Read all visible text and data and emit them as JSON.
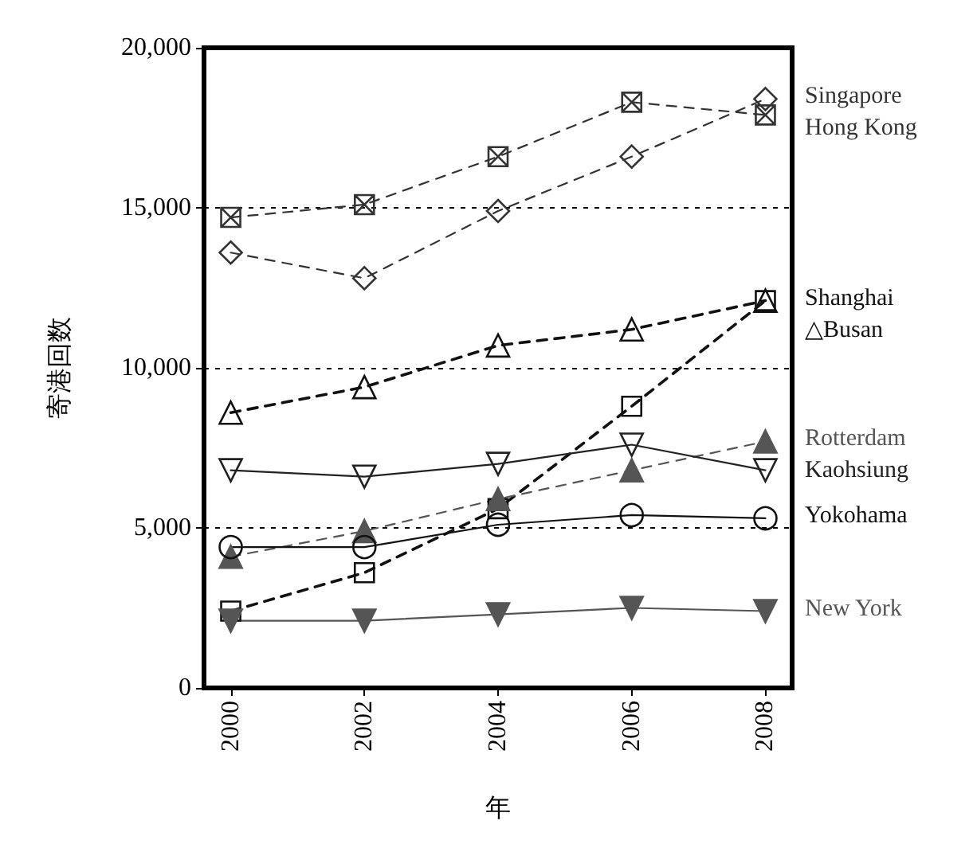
{
  "chart_data": {
    "type": "line",
    "xlabel": "年",
    "ylabel": "寄港回数",
    "x": [
      2000,
      2002,
      2004,
      2006,
      2008
    ],
    "xlim": [
      1999.6,
      2008.4
    ],
    "xticks": [
      2000,
      2002,
      2004,
      2006,
      2008
    ],
    "ylim": [
      0,
      20000
    ],
    "yticks": [
      0,
      {
        "value": 5000,
        "label": "5,000"
      },
      {
        "value": 10000,
        "label": "10,000"
      },
      {
        "value": 15000,
        "label": "15,000"
      },
      {
        "value": 20000,
        "label": "20,000"
      }
    ],
    "grid": "y",
    "legend": false,
    "series": [
      {
        "name": "Singapore",
        "color": "#333333",
        "marker": "diamond",
        "line_style": "dashed",
        "values": [
          13600,
          12800,
          14900,
          16600,
          18400
        ]
      },
      {
        "name": "Hong Kong",
        "color": "#333333",
        "marker": "cross",
        "line_style": "dashed",
        "values": [
          14700,
          15100,
          16600,
          18300,
          17900
        ]
      },
      {
        "name": "Shanghai",
        "color": "#111111",
        "marker": "square",
        "line_style": "dashed",
        "values": [
          2400,
          3600,
          5600,
          8800,
          12100
        ]
      },
      {
        "name": "△Busan",
        "color": "#111111",
        "marker": "triangle",
        "line_style": "dashed",
        "values": [
          8600,
          9400,
          10700,
          11200,
          12100
        ]
      },
      {
        "name": "Rotterdam",
        "color": "#555555",
        "marker": "triangle-filled",
        "line_style": "dashed",
        "values": [
          4100,
          4900,
          5900,
          6800,
          7700
        ]
      },
      {
        "name": "Kaohsiung",
        "color": "#222222",
        "marker": "triangle-down",
        "line_style": "solid",
        "values": [
          6800,
          6600,
          7000,
          7600,
          6800
        ]
      },
      {
        "name": "Yokohama",
        "color": "#111111",
        "marker": "circle",
        "line_style": "solid",
        "values": [
          4400,
          4400,
          5100,
          5400,
          5300
        ]
      },
      {
        "name": "New York",
        "color": "#555555",
        "marker": "triangle-down-filled",
        "line_style": "solid",
        "values": [
          2100,
          2100,
          2300,
          2500,
          2400
        ]
      }
    ]
  }
}
